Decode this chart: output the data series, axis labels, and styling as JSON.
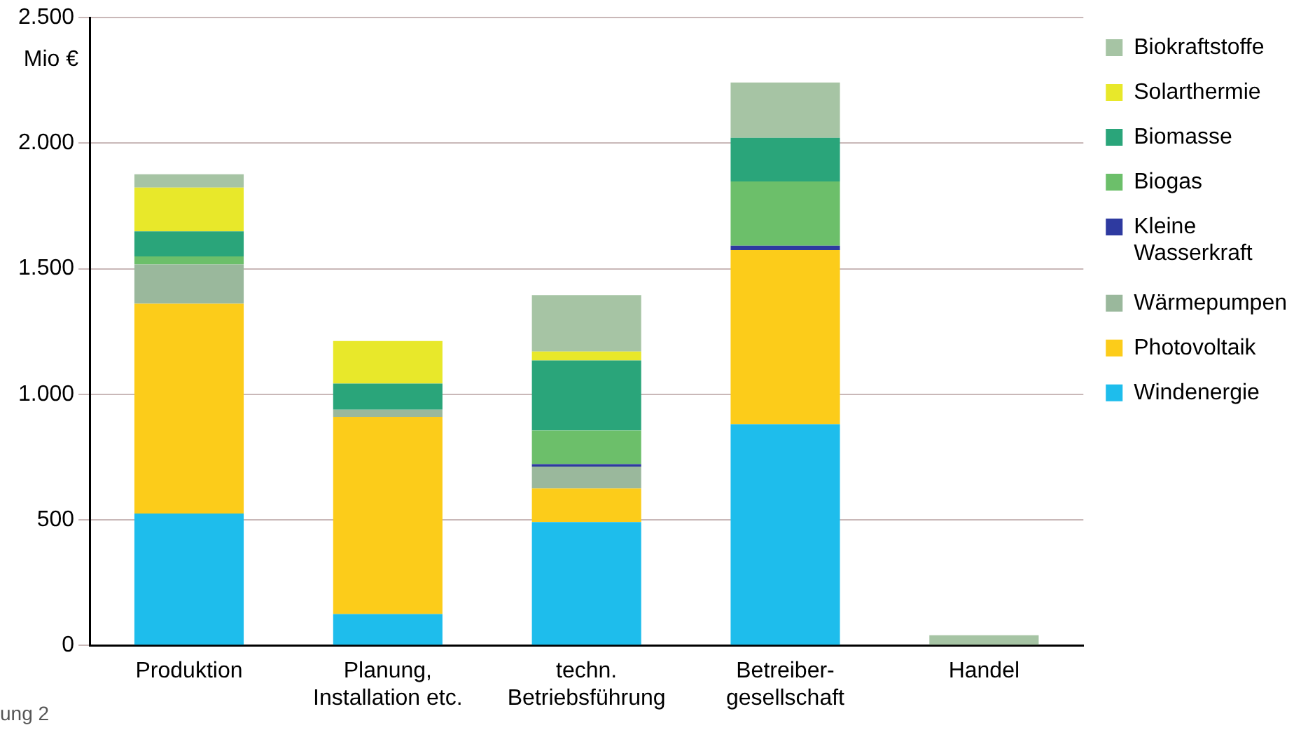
{
  "chart_data": {
    "type": "bar",
    "stacked": true,
    "ylabel": "Mio €",
    "categories": [
      "Produktion",
      "Planung,\nInstallation etc.",
      "techn.\nBetriebsführung",
      "Betreiber-\ngesellschaft",
      "Handel"
    ],
    "series": [
      {
        "name": "Windenergie",
        "color": "#1ebdec",
        "values": [
          525,
          125,
          491,
          881,
          0
        ]
      },
      {
        "name": "Photovoltaik",
        "color": "#fccc1a",
        "values": [
          836,
          785,
          134,
          693,
          0
        ]
      },
      {
        "name": "Wärmepumpen",
        "color": "#9ab89c",
        "values": [
          156,
          29,
          87,
          0,
          0
        ]
      },
      {
        "name": "Kleine\nWasserkraft",
        "color": "#2e3aa0",
        "values": [
          0,
          0,
          10,
          18,
          0
        ]
      },
      {
        "name": "Biogas",
        "color": "#6cbf6a",
        "values": [
          32,
          0,
          134,
          256,
          0
        ]
      },
      {
        "name": "Biomasse",
        "color": "#2aa57a",
        "values": [
          100,
          104,
          279,
          173,
          0
        ]
      },
      {
        "name": "Solarthermie",
        "color": "#e8e82a",
        "values": [
          174,
          169,
          35,
          0,
          0
        ]
      },
      {
        "name": "Biokraftstoffe",
        "color": "#a6c4a4",
        "values": [
          53,
          0,
          225,
          221,
          40
        ]
      }
    ],
    "ylim": [
      0,
      2500
    ],
    "yticks": [
      {
        "value": 0,
        "label": "0"
      },
      {
        "value": 500,
        "label": "500"
      },
      {
        "value": 1000,
        "label": "1.000"
      },
      {
        "value": 1500,
        "label": "1.500"
      },
      {
        "value": 2000,
        "label": "2.000"
      },
      {
        "value": 2500,
        "label": "2.500"
      }
    ],
    "grid": "y",
    "legend": "right",
    "annotations": [
      "ung 2"
    ]
  }
}
